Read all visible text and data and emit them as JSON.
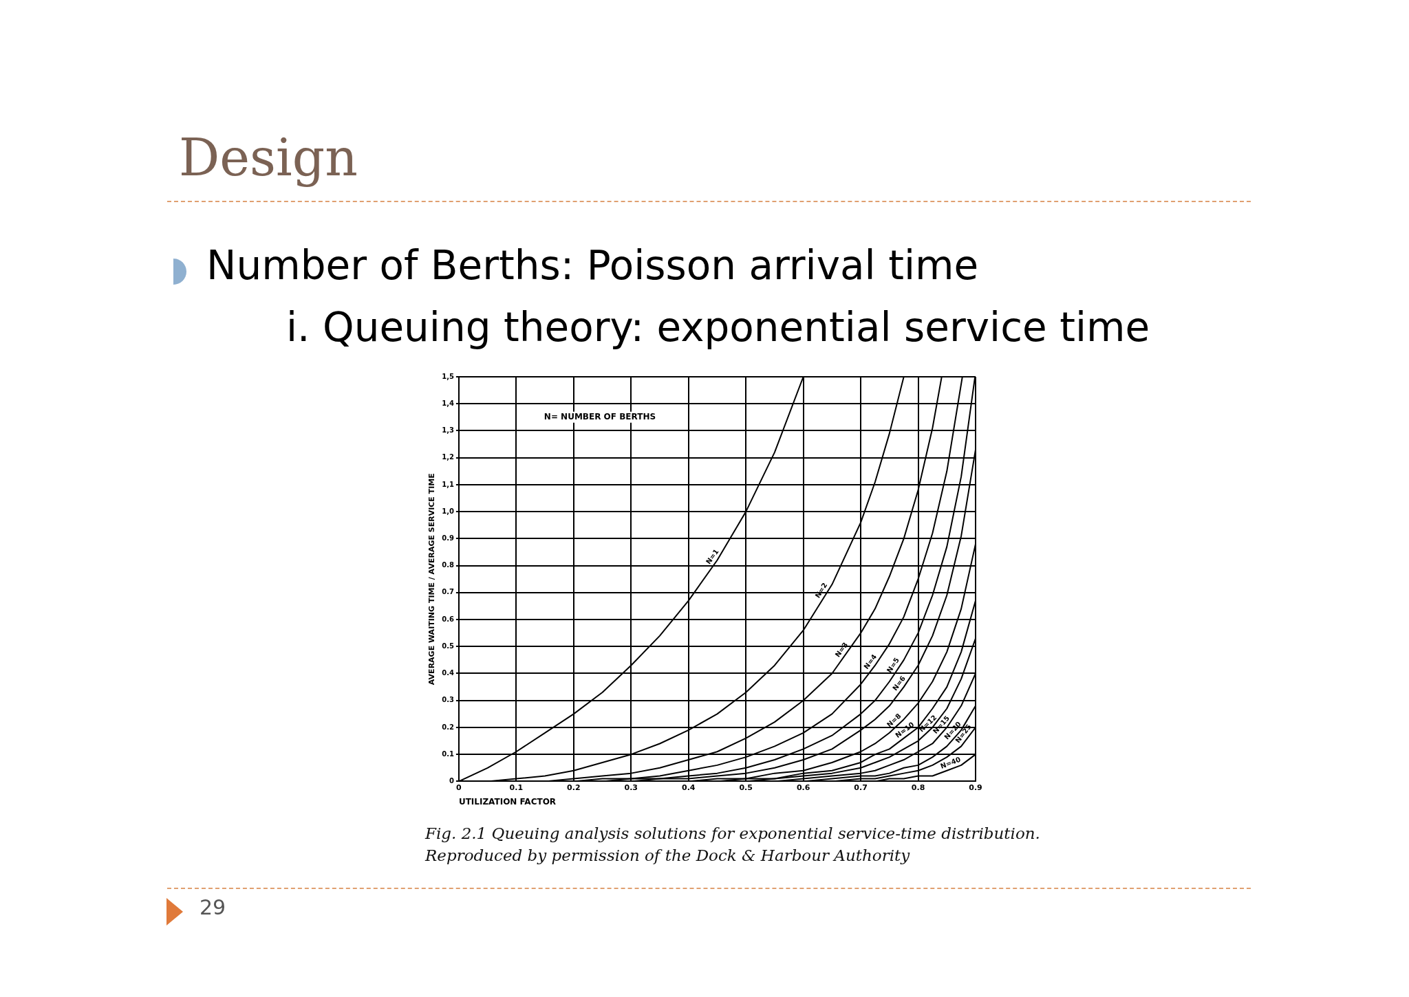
{
  "chart_data": {
    "type": "line",
    "title": "Design",
    "subtitle": "Number of Berths: Poisson arrival time",
    "annotations": [
      "i. Queuing theory: exponential service time",
      "N= NUMBER OF BERTHS",
      "Fig. 2.1 Queuing analysis solutions for exponential service-time distribution. Reproduced by permission of the Dock & Harbour Authority",
      "29"
    ],
    "xlabel": "UTILIZATION FACTOR",
    "ylabel": "AVERAGE WAITING TIME / AVERAGE SERVICE TIME",
    "xlim": [
      0,
      0.9
    ],
    "xticks": [
      0,
      0.1,
      0.2,
      0.3,
      0.4,
      0.5,
      0.6,
      0.7,
      0.8,
      0.9
    ],
    "ylim": [
      0,
      1.5
    ],
    "yticks": [
      0,
      0.1,
      0.2,
      0.3,
      0.4,
      0.5,
      0.6,
      0.7,
      0.8,
      0.9,
      {
        "value": 1.0,
        "label": "1,0"
      },
      {
        "value": 1.1,
        "label": "1,1"
      },
      {
        "value": 1.2,
        "label": "1,2"
      },
      {
        "value": 1.3,
        "label": "1,3"
      },
      {
        "value": 1.4,
        "label": "1,4"
      },
      {
        "value": 1.5,
        "label": "1,5"
      }
    ],
    "grid": true,
    "legend": false,
    "marker": "none",
    "line_style": "solid",
    "x": [
      0,
      0.05,
      0.1,
      0.15,
      0.2,
      0.25,
      0.3,
      0.35,
      0.4,
      0.45,
      0.5,
      0.55,
      0.6,
      0.65,
      0.7,
      0.725,
      0.75,
      0.775,
      0.8,
      0.825,
      0.85,
      0.875,
      0.9
    ],
    "series": [
      {
        "name": "N=1",
        "color": "#000000",
        "x": [
          0,
          0.05,
          0.1,
          0.15,
          0.2,
          0.25,
          0.3,
          0.35,
          0.4,
          0.45,
          0.5,
          0.55,
          0.6
        ],
        "values": [
          0,
          0.05,
          0.11,
          0.18,
          0.25,
          0.33,
          0.43,
          0.54,
          0.67,
          0.82,
          1.0,
          1.22,
          1.5
        ]
      },
      {
        "name": "N=2",
        "color": "#000000",
        "x": [
          0,
          0.05,
          0.1,
          0.15,
          0.2,
          0.25,
          0.3,
          0.35,
          0.4,
          0.45,
          0.5,
          0.55,
          0.6,
          0.65,
          0.7,
          0.725,
          0.75,
          0.775
        ],
        "values": [
          0,
          0,
          0.01,
          0.02,
          0.04,
          0.07,
          0.1,
          0.14,
          0.19,
          0.25,
          0.33,
          0.43,
          0.56,
          0.73,
          0.96,
          1.11,
          1.29,
          1.5
        ]
      },
      {
        "name": "N=3",
        "color": "#000000",
        "x": [
          0,
          0.05,
          0.1,
          0.15,
          0.2,
          0.25,
          0.3,
          0.35,
          0.4,
          0.45,
          0.5,
          0.55,
          0.6,
          0.65,
          0.7,
          0.725,
          0.75,
          0.775,
          0.8,
          0.825,
          0.841
        ],
        "values": [
          0,
          0,
          0,
          0,
          0.01,
          0.02,
          0.03,
          0.05,
          0.08,
          0.11,
          0.16,
          0.22,
          0.3,
          0.4,
          0.55,
          0.64,
          0.76,
          0.9,
          1.08,
          1.31,
          1.5
        ]
      },
      {
        "name": "N=4",
        "color": "#000000",
        "x": [
          0,
          0.05,
          0.1,
          0.15,
          0.2,
          0.25,
          0.3,
          0.35,
          0.4,
          0.45,
          0.5,
          0.55,
          0.6,
          0.65,
          0.7,
          0.725,
          0.75,
          0.775,
          0.8,
          0.825,
          0.85,
          0.877
        ],
        "values": [
          0,
          0,
          0,
          0,
          0,
          0.01,
          0.01,
          0.02,
          0.04,
          0.06,
          0.09,
          0.13,
          0.18,
          0.25,
          0.36,
          0.43,
          0.51,
          0.61,
          0.75,
          0.92,
          1.15,
          1.5
        ]
      },
      {
        "name": "N=5",
        "color": "#000000",
        "x": [
          0,
          0.05,
          0.1,
          0.15,
          0.2,
          0.25,
          0.3,
          0.35,
          0.4,
          0.45,
          0.5,
          0.55,
          0.6,
          0.65,
          0.7,
          0.725,
          0.75,
          0.775,
          0.8,
          0.825,
          0.85,
          0.875,
          0.899
        ],
        "values": [
          0,
          0,
          0,
          0,
          0,
          0,
          0.01,
          0.01,
          0.02,
          0.03,
          0.05,
          0.08,
          0.12,
          0.17,
          0.25,
          0.3,
          0.37,
          0.45,
          0.55,
          0.69,
          0.87,
          1.13,
          1.5
        ]
      },
      {
        "name": "N=6",
        "color": "#000000",
        "values": [
          0,
          0,
          0,
          0,
          0,
          0,
          0,
          0.01,
          0.01,
          0.02,
          0.03,
          0.05,
          0.08,
          0.12,
          0.19,
          0.23,
          0.28,
          0.35,
          0.43,
          0.54,
          0.69,
          0.91,
          1.23
        ]
      },
      {
        "name": "N=8",
        "color": "#000000",
        "values": [
          0,
          0,
          0,
          0,
          0,
          0,
          0,
          0,
          0,
          0.01,
          0.01,
          0.03,
          0.04,
          0.07,
          0.11,
          0.14,
          0.18,
          0.23,
          0.29,
          0.37,
          0.48,
          0.64,
          0.88
        ]
      },
      {
        "name": "N=10",
        "color": "#000000",
        "values": [
          0,
          0,
          0,
          0,
          0,
          0,
          0,
          0,
          0,
          0,
          0.01,
          0.01,
          0.03,
          0.04,
          0.07,
          0.1,
          0.12,
          0.16,
          0.2,
          0.27,
          0.35,
          0.48,
          0.67
        ]
      },
      {
        "name": "N=12",
        "color": "#000000",
        "values": [
          0,
          0,
          0,
          0,
          0,
          0,
          0,
          0,
          0,
          0,
          0,
          0.01,
          0.02,
          0.03,
          0.05,
          0.07,
          0.09,
          0.12,
          0.15,
          0.2,
          0.27,
          0.38,
          0.53
        ]
      },
      {
        "name": "N=15",
        "color": "#000000",
        "values": [
          0,
          0,
          0,
          0,
          0,
          0,
          0,
          0,
          0,
          0,
          0,
          0,
          0.01,
          0.02,
          0.03,
          0.04,
          0.06,
          0.08,
          0.11,
          0.14,
          0.2,
          0.28,
          0.4
        ]
      },
      {
        "name": "N=20",
        "color": "#000000",
        "values": [
          0,
          0,
          0,
          0,
          0,
          0,
          0,
          0,
          0,
          0,
          0,
          0,
          0,
          0.01,
          0.02,
          0.02,
          0.03,
          0.05,
          0.06,
          0.09,
          0.13,
          0.19,
          0.28
        ]
      },
      {
        "name": "N=25",
        "color": "#000000",
        "values": [
          0,
          0,
          0,
          0,
          0,
          0,
          0,
          0,
          0,
          0,
          0,
          0,
          0,
          0,
          0.01,
          0.01,
          0.02,
          0.03,
          0.04,
          0.06,
          0.09,
          0.13,
          0.2
        ]
      },
      {
        "name": "N=40",
        "color": "#000000",
        "values": [
          0,
          0,
          0,
          0,
          0,
          0,
          0,
          0,
          0,
          0,
          0,
          0,
          0,
          0,
          0,
          0,
          0.01,
          0.01,
          0.02,
          0.02,
          0.04,
          0.06,
          0.1
        ]
      }
    ]
  }
}
